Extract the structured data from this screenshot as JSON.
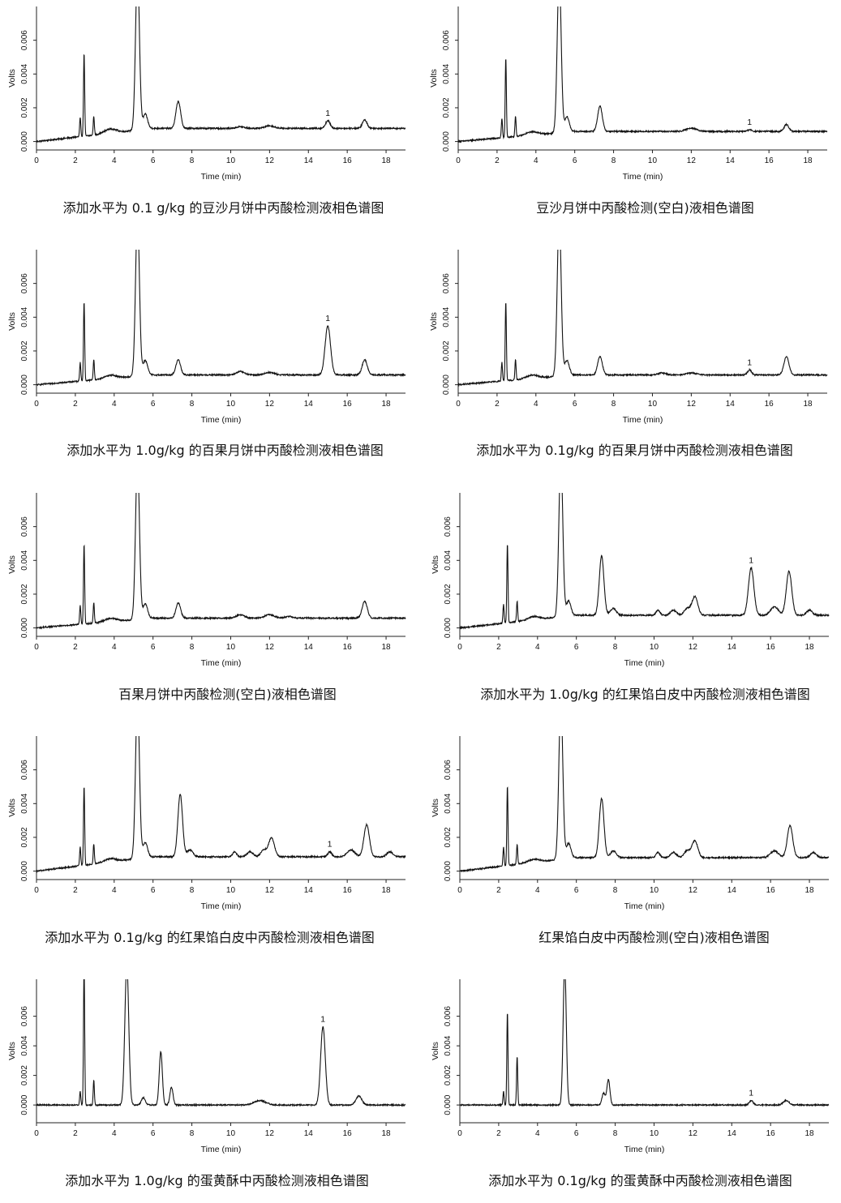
{
  "chart_data": [
    {
      "type": "line",
      "caption": "添加水平为 0.1 g/kg 的豆沙月饼中丙酸检测液相色谱图",
      "xlabel": "Time (min)",
      "ylabel": "Volts",
      "xlim": [
        0,
        19
      ],
      "ylim": [
        -0.0005,
        0.008
      ],
      "x_ticks": [
        0,
        2,
        4,
        6,
        8,
        10,
        12,
        14,
        16,
        18
      ],
      "y_ticks": [
        "0.000",
        "0.002",
        "0.004",
        "0.006"
      ],
      "baseline": [
        0.0,
        0.00078
      ],
      "peaks": [
        {
          "x": 2.25,
          "y": 0.0011,
          "w": 0.03
        },
        {
          "x": 2.45,
          "y": 0.0049,
          "w": 0.03
        },
        {
          "x": 2.95,
          "y": 0.0011,
          "w": 0.03
        },
        {
          "x": 3.8,
          "y": 0.00025,
          "w": 0.3
        },
        {
          "x": 5.2,
          "y": 0.0095,
          "w": 0.1
        },
        {
          "x": 5.6,
          "y": 0.0009,
          "w": 0.12
        },
        {
          "x": 7.3,
          "y": 0.0016,
          "w": 0.12
        },
        {
          "x": 10.5,
          "y": 0.0001,
          "w": 0.2
        },
        {
          "x": 12.0,
          "y": 0.00015,
          "w": 0.25
        },
        {
          "x": 15.0,
          "y": 0.00045,
          "w": 0.12
        },
        {
          "x": 16.9,
          "y": 0.0005,
          "w": 0.12
        }
      ],
      "annotations": [
        {
          "x": 15.0,
          "text": "1"
        }
      ]
    },
    {
      "type": "line",
      "caption": "豆沙月饼中丙酸检测(空白)液相色谱图",
      "xlabel": "Time (min)",
      "ylabel": "Volts",
      "xlim": [
        0,
        19
      ],
      "ylim": [
        -0.0005,
        0.008
      ],
      "x_ticks": [
        0,
        2,
        4,
        6,
        8,
        10,
        12,
        14,
        16,
        18
      ],
      "y_ticks": [
        "0.000",
        "0.002",
        "0.004",
        "0.006"
      ],
      "baseline": [
        0.0,
        0.0006
      ],
      "peaks": [
        {
          "x": 2.25,
          "y": 0.0011,
          "w": 0.03
        },
        {
          "x": 2.45,
          "y": 0.0047,
          "w": 0.03
        },
        {
          "x": 2.95,
          "y": 0.0012,
          "w": 0.03
        },
        {
          "x": 3.8,
          "y": 0.0002,
          "w": 0.3
        },
        {
          "x": 5.2,
          "y": 0.0095,
          "w": 0.1
        },
        {
          "x": 5.6,
          "y": 0.0009,
          "w": 0.12
        },
        {
          "x": 7.3,
          "y": 0.0015,
          "w": 0.12
        },
        {
          "x": 12.0,
          "y": 0.0002,
          "w": 0.25
        },
        {
          "x": 15.0,
          "y": 0.0001,
          "w": 0.1
        },
        {
          "x": 16.9,
          "y": 0.0004,
          "w": 0.12
        }
      ],
      "annotations": [
        {
          "x": 15.0,
          "text": "1"
        }
      ]
    },
    {
      "type": "line",
      "caption": "添加水平为 1.0g/kg 的百果月饼中丙酸检测液相色谱图",
      "xlabel": "Time (min)",
      "ylabel": "Volts",
      "xlim": [
        0,
        19
      ],
      "ylim": [
        -0.0005,
        0.008
      ],
      "x_ticks": [
        0,
        2,
        4,
        6,
        8,
        10,
        12,
        14,
        16,
        18
      ],
      "y_ticks": [
        "0.000",
        "0.002",
        "0.004",
        "0.006"
      ],
      "baseline": [
        0.0,
        0.00058
      ],
      "peaks": [
        {
          "x": 2.25,
          "y": 0.0011,
          "w": 0.03
        },
        {
          "x": 2.45,
          "y": 0.0047,
          "w": 0.03
        },
        {
          "x": 2.95,
          "y": 0.0012,
          "w": 0.03
        },
        {
          "x": 3.8,
          "y": 0.0002,
          "w": 0.3
        },
        {
          "x": 5.2,
          "y": 0.0095,
          "w": 0.1
        },
        {
          "x": 5.6,
          "y": 0.0009,
          "w": 0.12
        },
        {
          "x": 7.3,
          "y": 0.0009,
          "w": 0.12
        },
        {
          "x": 10.5,
          "y": 0.0002,
          "w": 0.2
        },
        {
          "x": 12.0,
          "y": 0.00015,
          "w": 0.25
        },
        {
          "x": 15.0,
          "y": 0.0029,
          "w": 0.14
        },
        {
          "x": 16.9,
          "y": 0.0009,
          "w": 0.13
        }
      ],
      "annotations": [
        {
          "x": 15.0,
          "text": "1"
        }
      ]
    },
    {
      "type": "line",
      "caption": "添加水平为 0.1g/kg 的百果月饼中丙酸检测液相色谱图",
      "xlabel": "Time (min)",
      "ylabel": "Volts",
      "xlim": [
        0,
        19
      ],
      "ylim": [
        -0.0005,
        0.008
      ],
      "x_ticks": [
        0,
        2,
        4,
        6,
        8,
        10,
        12,
        14,
        16,
        18
      ],
      "y_ticks": [
        "0.000",
        "0.002",
        "0.004",
        "0.006"
      ],
      "baseline": [
        0.0,
        0.00058
      ],
      "peaks": [
        {
          "x": 2.25,
          "y": 0.0011,
          "w": 0.03
        },
        {
          "x": 2.45,
          "y": 0.0047,
          "w": 0.03
        },
        {
          "x": 2.95,
          "y": 0.0012,
          "w": 0.03
        },
        {
          "x": 3.8,
          "y": 0.0002,
          "w": 0.3
        },
        {
          "x": 5.2,
          "y": 0.0095,
          "w": 0.1
        },
        {
          "x": 5.6,
          "y": 0.0009,
          "w": 0.12
        },
        {
          "x": 7.3,
          "y": 0.0011,
          "w": 0.12
        },
        {
          "x": 10.5,
          "y": 0.00012,
          "w": 0.2
        },
        {
          "x": 12.0,
          "y": 0.00012,
          "w": 0.25
        },
        {
          "x": 15.0,
          "y": 0.0003,
          "w": 0.1
        },
        {
          "x": 16.9,
          "y": 0.0011,
          "w": 0.13
        }
      ],
      "annotations": [
        {
          "x": 15.0,
          "text": "1"
        }
      ]
    },
    {
      "type": "line",
      "caption": "百果月饼中丙酸检测(空白)液相色谱图",
      "xlabel": "Time (min)",
      "ylabel": "Volts",
      "xlim": [
        0,
        19
      ],
      "ylim": [
        -0.0005,
        0.008
      ],
      "x_ticks": [
        0,
        2,
        4,
        6,
        8,
        10,
        12,
        14,
        16,
        18
      ],
      "y_ticks": [
        "0.000",
        "0.002",
        "0.004",
        "0.006"
      ],
      "baseline": [
        0.0,
        0.00058
      ],
      "peaks": [
        {
          "x": 2.25,
          "y": 0.0011,
          "w": 0.03
        },
        {
          "x": 2.45,
          "y": 0.0047,
          "w": 0.03
        },
        {
          "x": 2.95,
          "y": 0.0012,
          "w": 0.03
        },
        {
          "x": 3.8,
          "y": 0.0002,
          "w": 0.3
        },
        {
          "x": 5.2,
          "y": 0.0095,
          "w": 0.1
        },
        {
          "x": 5.6,
          "y": 0.0009,
          "w": 0.12
        },
        {
          "x": 7.3,
          "y": 0.0009,
          "w": 0.12
        },
        {
          "x": 10.5,
          "y": 0.0002,
          "w": 0.2
        },
        {
          "x": 12.0,
          "y": 0.0002,
          "w": 0.25
        },
        {
          "x": 13.0,
          "y": 0.0001,
          "w": 0.2
        },
        {
          "x": 16.9,
          "y": 0.001,
          "w": 0.13
        }
      ],
      "annotations": []
    },
    {
      "type": "line",
      "caption": "添加水平为 1.0g/kg 的红果馅白皮中丙酸检测液相色谱图",
      "xlabel": "Time (min)",
      "ylabel": "Volts",
      "xlim": [
        0,
        19
      ],
      "ylim": [
        -0.0005,
        0.008
      ],
      "x_ticks": [
        0,
        2,
        4,
        6,
        8,
        10,
        12,
        14,
        16,
        18
      ],
      "y_ticks": [
        "0.000",
        "0.002",
        "0.004",
        "0.006"
      ],
      "baseline": [
        0.0,
        0.00075
      ],
      "peaks": [
        {
          "x": 2.25,
          "y": 0.0011,
          "w": 0.03
        },
        {
          "x": 2.45,
          "y": 0.0047,
          "w": 0.03
        },
        {
          "x": 2.95,
          "y": 0.0012,
          "w": 0.03
        },
        {
          "x": 3.8,
          "y": 0.0002,
          "w": 0.3
        },
        {
          "x": 5.2,
          "y": 0.0095,
          "w": 0.1
        },
        {
          "x": 5.6,
          "y": 0.0009,
          "w": 0.12
        },
        {
          "x": 7.3,
          "y": 0.0035,
          "w": 0.12
        },
        {
          "x": 7.9,
          "y": 0.0004,
          "w": 0.15
        },
        {
          "x": 10.2,
          "y": 0.0003,
          "w": 0.1
        },
        {
          "x": 11.0,
          "y": 0.0003,
          "w": 0.15
        },
        {
          "x": 11.7,
          "y": 0.0004,
          "w": 0.15
        },
        {
          "x": 12.1,
          "y": 0.0011,
          "w": 0.15
        },
        {
          "x": 15.0,
          "y": 0.0028,
          "w": 0.14
        },
        {
          "x": 16.2,
          "y": 0.0005,
          "w": 0.2
        },
        {
          "x": 16.95,
          "y": 0.0026,
          "w": 0.14
        },
        {
          "x": 18.0,
          "y": 0.0003,
          "w": 0.15
        }
      ],
      "annotations": [
        {
          "x": 15.0,
          "text": "1"
        }
      ]
    },
    {
      "type": "line",
      "caption": "添加水平为 0.1g/kg 的红果馅白皮中丙酸检测液相色谱图",
      "xlabel": "Time (min)",
      "ylabel": "Volts",
      "xlim": [
        0,
        19
      ],
      "ylim": [
        -0.0005,
        0.008
      ],
      "x_ticks": [
        0,
        2,
        4,
        6,
        8,
        10,
        12,
        14,
        16,
        18
      ],
      "y_ticks": [
        "0.000",
        "0.002",
        "0.004",
        "0.006"
      ],
      "baseline": [
        0.0,
        0.00085
      ],
      "peaks": [
        {
          "x": 2.25,
          "y": 0.0011,
          "w": 0.03
        },
        {
          "x": 2.45,
          "y": 0.0047,
          "w": 0.03
        },
        {
          "x": 2.95,
          "y": 0.0012,
          "w": 0.03
        },
        {
          "x": 3.8,
          "y": 0.0002,
          "w": 0.3
        },
        {
          "x": 5.2,
          "y": 0.0095,
          "w": 0.1
        },
        {
          "x": 5.6,
          "y": 0.0009,
          "w": 0.12
        },
        {
          "x": 7.4,
          "y": 0.0037,
          "w": 0.12
        },
        {
          "x": 7.9,
          "y": 0.0004,
          "w": 0.15
        },
        {
          "x": 10.2,
          "y": 0.0003,
          "w": 0.1
        },
        {
          "x": 11.0,
          "y": 0.0003,
          "w": 0.15
        },
        {
          "x": 11.7,
          "y": 0.0004,
          "w": 0.15
        },
        {
          "x": 12.1,
          "y": 0.0011,
          "w": 0.15
        },
        {
          "x": 15.1,
          "y": 0.0003,
          "w": 0.1
        },
        {
          "x": 16.2,
          "y": 0.0004,
          "w": 0.2
        },
        {
          "x": 17.0,
          "y": 0.0019,
          "w": 0.14
        },
        {
          "x": 18.2,
          "y": 0.0003,
          "w": 0.15
        }
      ],
      "annotations": [
        {
          "x": 15.1,
          "text": "1"
        }
      ]
    },
    {
      "type": "line",
      "caption": "红果馅白皮中丙酸检测(空白)液相色谱图",
      "xlabel": "Time (min)",
      "ylabel": "Volts",
      "xlim": [
        0,
        19
      ],
      "ylim": [
        -0.0005,
        0.008
      ],
      "x_ticks": [
        0,
        2,
        4,
        6,
        8,
        10,
        12,
        14,
        16,
        18
      ],
      "y_ticks": [
        "0.000",
        "0.002",
        "0.004",
        "0.006"
      ],
      "baseline": [
        0.0,
        0.0008
      ],
      "peaks": [
        {
          "x": 2.25,
          "y": 0.0011,
          "w": 0.03
        },
        {
          "x": 2.45,
          "y": 0.0047,
          "w": 0.03
        },
        {
          "x": 2.95,
          "y": 0.0012,
          "w": 0.03
        },
        {
          "x": 3.8,
          "y": 0.0002,
          "w": 0.3
        },
        {
          "x": 5.2,
          "y": 0.0095,
          "w": 0.1
        },
        {
          "x": 5.6,
          "y": 0.0009,
          "w": 0.12
        },
        {
          "x": 7.3,
          "y": 0.0035,
          "w": 0.12
        },
        {
          "x": 7.9,
          "y": 0.0004,
          "w": 0.15
        },
        {
          "x": 10.2,
          "y": 0.0003,
          "w": 0.1
        },
        {
          "x": 11.0,
          "y": 0.0003,
          "w": 0.15
        },
        {
          "x": 11.7,
          "y": 0.0004,
          "w": 0.15
        },
        {
          "x": 12.1,
          "y": 0.001,
          "w": 0.15
        },
        {
          "x": 16.2,
          "y": 0.0004,
          "w": 0.2
        },
        {
          "x": 17.0,
          "y": 0.0019,
          "w": 0.14
        },
        {
          "x": 18.2,
          "y": 0.0003,
          "w": 0.15
        }
      ],
      "annotations": []
    },
    {
      "type": "line",
      "caption": "添加水平为 1.0g/kg 的蛋黄酥中丙酸检测液相色谱图",
      "xlabel": "Time (min)",
      "ylabel": "Volts",
      "xlim": [
        0,
        19
      ],
      "ylim": [
        -0.0012,
        0.0085
      ],
      "x_ticks": [
        0,
        2,
        4,
        6,
        8,
        10,
        12,
        14,
        16,
        18
      ],
      "y_ticks": [
        "0.000",
        "0.002",
        "0.004",
        "0.006"
      ],
      "baseline": [
        0.0,
        0.0
      ],
      "peaks": [
        {
          "x": 2.25,
          "y": 0.0009,
          "w": 0.03
        },
        {
          "x": 2.45,
          "y": 0.0095,
          "w": 0.03
        },
        {
          "x": 2.95,
          "y": 0.0017,
          "w": 0.03
        },
        {
          "x": 4.65,
          "y": 0.0095,
          "w": 0.1
        },
        {
          "x": 5.5,
          "y": 0.0005,
          "w": 0.1
        },
        {
          "x": 6.4,
          "y": 0.0036,
          "w": 0.08
        },
        {
          "x": 6.95,
          "y": 0.0012,
          "w": 0.08
        },
        {
          "x": 11.5,
          "y": 0.0003,
          "w": 0.3
        },
        {
          "x": 14.75,
          "y": 0.0053,
          "w": 0.12
        },
        {
          "x": 16.6,
          "y": 0.0006,
          "w": 0.15
        }
      ],
      "annotations": [
        {
          "x": 14.75,
          "text": "1"
        }
      ]
    },
    {
      "type": "line",
      "caption": "添加水平为 0.1g/kg 的蛋黄酥中丙酸检测液相色谱图",
      "xlabel": "Time (min)",
      "ylabel": "Volts",
      "xlim": [
        0,
        19
      ],
      "ylim": [
        -0.0012,
        0.0085
      ],
      "x_ticks": [
        0,
        2,
        4,
        6,
        8,
        10,
        12,
        14,
        16,
        18
      ],
      "y_ticks": [
        "0.000",
        "0.002",
        "0.004",
        "0.006"
      ],
      "baseline": [
        0.0,
        0.0
      ],
      "peaks": [
        {
          "x": 2.25,
          "y": 0.0009,
          "w": 0.03
        },
        {
          "x": 2.45,
          "y": 0.0063,
          "w": 0.03
        },
        {
          "x": 2.95,
          "y": 0.0033,
          "w": 0.03
        },
        {
          "x": 5.4,
          "y": 0.0095,
          "w": 0.08
        },
        {
          "x": 7.4,
          "y": 0.0008,
          "w": 0.08
        },
        {
          "x": 7.65,
          "y": 0.0017,
          "w": 0.08
        },
        {
          "x": 15.0,
          "y": 0.0003,
          "w": 0.1
        },
        {
          "x": 16.8,
          "y": 0.0003,
          "w": 0.15
        }
      ],
      "annotations": [
        {
          "x": 15.0,
          "text": "1"
        }
      ]
    }
  ]
}
